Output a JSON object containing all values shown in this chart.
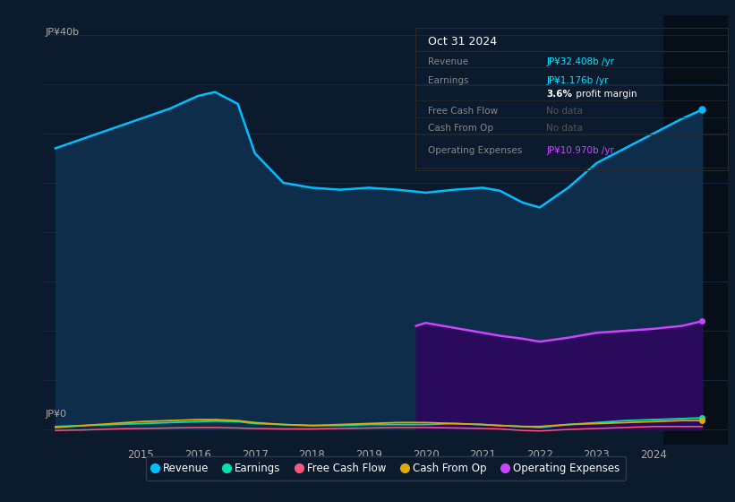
{
  "bg_color": "#0c1a2e",
  "plot_bg_color": "#0c1a2e",
  "title_text": "Oct 31 2024",
  "ylabel_top": "JP¥40b",
  "ylabel_zero": "JP¥0",
  "years": [
    2013.5,
    2014.0,
    2014.5,
    2015.0,
    2015.5,
    2016.0,
    2016.3,
    2016.7,
    2017.0,
    2017.5,
    2018.0,
    2018.5,
    2019.0,
    2019.5,
    2020.0,
    2020.5,
    2021.0,
    2021.3,
    2021.7,
    2022.0,
    2022.5,
    2023.0,
    2023.5,
    2024.0,
    2024.5,
    2024.85
  ],
  "revenue": [
    28.5,
    29.5,
    30.5,
    31.5,
    32.5,
    33.8,
    34.2,
    33.0,
    28.0,
    25.0,
    24.5,
    24.3,
    24.5,
    24.3,
    24.0,
    24.3,
    24.5,
    24.2,
    23.0,
    22.5,
    24.5,
    27.0,
    28.5,
    30.0,
    31.5,
    32.4
  ],
  "earnings": [
    0.3,
    0.4,
    0.5,
    0.6,
    0.7,
    0.8,
    0.85,
    0.8,
    0.6,
    0.5,
    0.4,
    0.4,
    0.5,
    0.5,
    0.5,
    0.6,
    0.5,
    0.4,
    0.3,
    0.2,
    0.5,
    0.7,
    0.9,
    1.0,
    1.1,
    1.176
  ],
  "free_cash_flow": [
    -0.1,
    -0.05,
    0.05,
    0.1,
    0.15,
    0.2,
    0.2,
    0.15,
    0.1,
    0.05,
    0.05,
    0.1,
    0.15,
    0.2,
    0.2,
    0.15,
    0.1,
    0.05,
    -0.1,
    -0.15,
    0.0,
    0.1,
    0.2,
    0.3,
    0.3,
    0.3
  ],
  "cash_from_op": [
    0.2,
    0.4,
    0.6,
    0.8,
    0.9,
    1.0,
    1.0,
    0.9,
    0.7,
    0.5,
    0.4,
    0.5,
    0.6,
    0.7,
    0.7,
    0.6,
    0.5,
    0.4,
    0.3,
    0.3,
    0.5,
    0.6,
    0.7,
    0.8,
    0.9,
    0.9
  ],
  "op_expenses_years": [
    2019.83,
    2020.0,
    2020.5,
    2021.0,
    2021.3,
    2021.7,
    2022.0,
    2022.5,
    2023.0,
    2023.5,
    2024.0,
    2024.5,
    2024.85
  ],
  "op_expenses": [
    10.5,
    10.8,
    10.3,
    9.8,
    9.5,
    9.2,
    8.9,
    9.3,
    9.8,
    10.0,
    10.2,
    10.5,
    10.97
  ],
  "revenue_color": "#00bfff",
  "revenue_fill_color": "#0d2d4a",
  "earnings_color": "#00e0b0",
  "fcf_color": "#ff5577",
  "cashop_color": "#e0aa00",
  "opex_color": "#cc44ff",
  "opex_fill_color": "#2a0a5a",
  "legend_items": [
    {
      "label": "Revenue",
      "color": "#00bfff"
    },
    {
      "label": "Earnings",
      "color": "#00e0b0"
    },
    {
      "label": "Free Cash Flow",
      "color": "#ff5577"
    },
    {
      "label": "Cash From Op",
      "color": "#e0aa00"
    },
    {
      "label": "Operating Expenses",
      "color": "#cc44ff"
    }
  ],
  "shade_start_x": 2024.17,
  "xmin": 2013.3,
  "xmax": 2025.3,
  "ymin": -1.5,
  "ymax": 42,
  "xticks": [
    2015,
    2016,
    2017,
    2018,
    2019,
    2020,
    2021,
    2022,
    2023,
    2024
  ],
  "grid_color": "#1a3050",
  "text_color": "#aaaaaa",
  "info_box": {
    "title": "Oct 31 2024",
    "rows": [
      {
        "label": "Revenue",
        "value": "JP¥32.408b /yr",
        "val_color": "#00e5ff"
      },
      {
        "label": "Earnings",
        "value": "JP¥1.176b /yr",
        "val_color": "#00e5ff"
      },
      {
        "label": "",
        "value": "3.6% profit margin",
        "val_color": "#dddddd",
        "bold_prefix": "3.6%"
      },
      {
        "label": "Free Cash Flow",
        "value": "No data",
        "val_color": "#555555"
      },
      {
        "label": "Cash From Op",
        "value": "No data",
        "val_color": "#555555"
      },
      {
        "label": "Operating Expenses",
        "value": "JP¥10.970b /yr",
        "val_color": "#cc44ff"
      }
    ]
  }
}
